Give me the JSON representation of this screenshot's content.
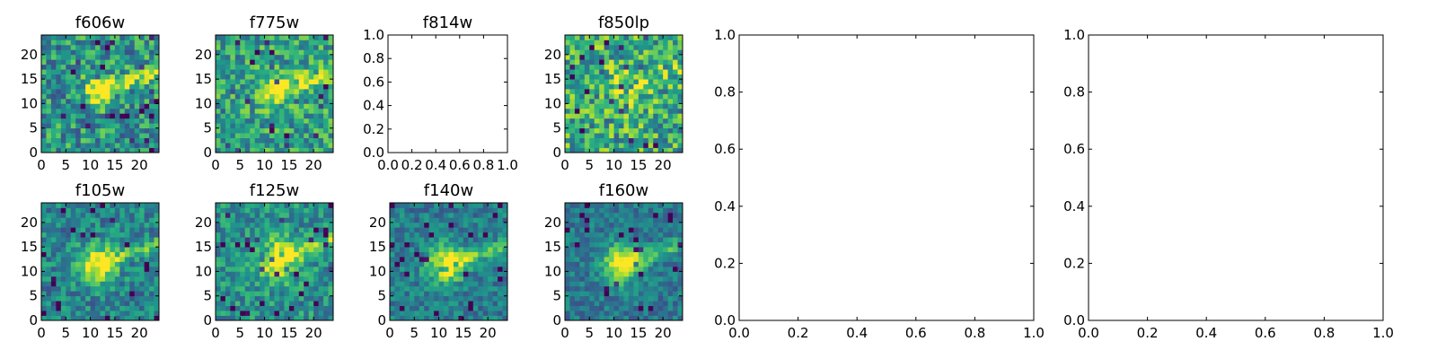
{
  "chart_data": [
    {
      "type": "heatmap",
      "title": "f606w",
      "grid_size": 24,
      "colormap": "viridis",
      "xlim": [
        0,
        24
      ],
      "ylim": [
        0,
        24
      ],
      "xticks": [
        0,
        5,
        10,
        15,
        20
      ],
      "yticks": [
        0,
        5,
        10,
        15,
        20
      ],
      "values": [],
      "features": {
        "source_center": [
          11,
          12
        ],
        "streak": "extends toward upper-right to x=24, y=16"
      }
    },
    {
      "type": "heatmap",
      "title": "f775w",
      "grid_size": 24,
      "colormap": "viridis",
      "xlim": [
        0,
        24
      ],
      "ylim": [
        0,
        24
      ],
      "xticks": [
        0,
        5,
        10,
        15,
        20
      ],
      "yticks": [
        0,
        5,
        10,
        15,
        20
      ],
      "values": [],
      "features": {
        "source_center": [
          11,
          12
        ],
        "streak": "extends toward upper-right to x=24, y=16"
      }
    },
    {
      "type": "heatmap",
      "title": "f814w",
      "empty": true,
      "xlim": [
        0,
        1
      ],
      "ylim": [
        0,
        1
      ],
      "xticks": [
        0.0,
        0.2,
        0.4,
        0.6,
        0.8,
        1.0
      ],
      "yticks": [
        0.0,
        0.2,
        0.4,
        0.6,
        0.8,
        1.0
      ],
      "xtick_labels": [
        "0.0",
        "0.2",
        "0.4",
        "0.6",
        "0.8",
        "1.0"
      ],
      "ytick_labels": [
        "0.0",
        "0.2",
        "0.4",
        "0.6",
        "0.8",
        "1.0"
      ]
    },
    {
      "type": "heatmap",
      "title": "f850lp",
      "grid_size": 24,
      "colormap": "viridis",
      "xlim": [
        0,
        24
      ],
      "ylim": [
        0,
        24
      ],
      "xticks": [
        0,
        5,
        10,
        15,
        20
      ],
      "yticks": [
        0,
        5,
        10,
        15,
        20
      ],
      "values": [],
      "features": {
        "source_center": [
          12,
          13
        ],
        "streak": "faint"
      }
    },
    {
      "type": "heatmap",
      "title": "f105w",
      "grid_size": 24,
      "colormap": "viridis",
      "xlim": [
        0,
        24
      ],
      "ylim": [
        0,
        24
      ],
      "xticks": [
        0,
        5,
        10,
        15,
        20
      ],
      "yticks": [
        0,
        5,
        10,
        15,
        20
      ],
      "values": [],
      "features": {
        "source_center": [
          11,
          11
        ],
        "streak": "extends toward upper-right to x=24, y=15"
      }
    },
    {
      "type": "heatmap",
      "title": "f125w",
      "grid_size": 24,
      "colormap": "viridis",
      "xlim": [
        0,
        24
      ],
      "ylim": [
        0,
        24
      ],
      "xticks": [
        0,
        5,
        10,
        15,
        20
      ],
      "yticks": [
        0,
        5,
        10,
        15,
        20
      ],
      "values": [],
      "features": {
        "source_center": [
          12,
          12
        ],
        "streak": "extends toward upper-right to x=24, y=15"
      }
    },
    {
      "type": "heatmap",
      "title": "f140w",
      "grid_size": 24,
      "colormap": "viridis",
      "xlim": [
        0,
        24
      ],
      "ylim": [
        0,
        24
      ],
      "xticks": [
        0,
        5,
        10,
        15,
        20
      ],
      "yticks": [
        0,
        5,
        10,
        15,
        20
      ],
      "values": [],
      "features": {
        "source_center": [
          11,
          11
        ],
        "streak": "extends toward upper-right to x=24, y=14"
      }
    },
    {
      "type": "heatmap",
      "title": "f160w",
      "grid_size": 24,
      "colormap": "viridis",
      "xlim": [
        0,
        24
      ],
      "ylim": [
        0,
        24
      ],
      "xticks": [
        0,
        5,
        10,
        15,
        20
      ],
      "yticks": [
        0,
        5,
        10,
        15,
        20
      ],
      "values": [],
      "features": {
        "source_center": [
          11,
          11
        ],
        "streak": "extends toward upper-right to x=24, y=14"
      }
    },
    {
      "type": "scatter",
      "empty": true,
      "xlim": [
        0,
        1
      ],
      "ylim": [
        0,
        1
      ],
      "xticks": [
        0.0,
        0.2,
        0.4,
        0.6,
        0.8,
        1.0
      ],
      "yticks": [
        0.0,
        0.2,
        0.4,
        0.6,
        0.8,
        1.0
      ],
      "xtick_labels": [
        "0.0",
        "0.2",
        "0.4",
        "0.6",
        "0.8",
        "1.0"
      ],
      "ytick_labels": [
        "0.0",
        "0.2",
        "0.4",
        "0.6",
        "0.8",
        "1.0"
      ]
    },
    {
      "type": "scatter",
      "empty": true,
      "xlim": [
        0,
        1
      ],
      "ylim": [
        0,
        1
      ],
      "xticks": [
        0.0,
        0.2,
        0.4,
        0.6,
        0.8,
        1.0
      ],
      "yticks": [
        0.0,
        0.2,
        0.4,
        0.6,
        0.8,
        1.0
      ],
      "xtick_labels": [
        "0.0",
        "0.2",
        "0.4",
        "0.6",
        "0.8",
        "1.0"
      ],
      "ytick_labels": [
        "0.0",
        "0.2",
        "0.4",
        "0.6",
        "0.8",
        "1.0"
      ]
    }
  ]
}
